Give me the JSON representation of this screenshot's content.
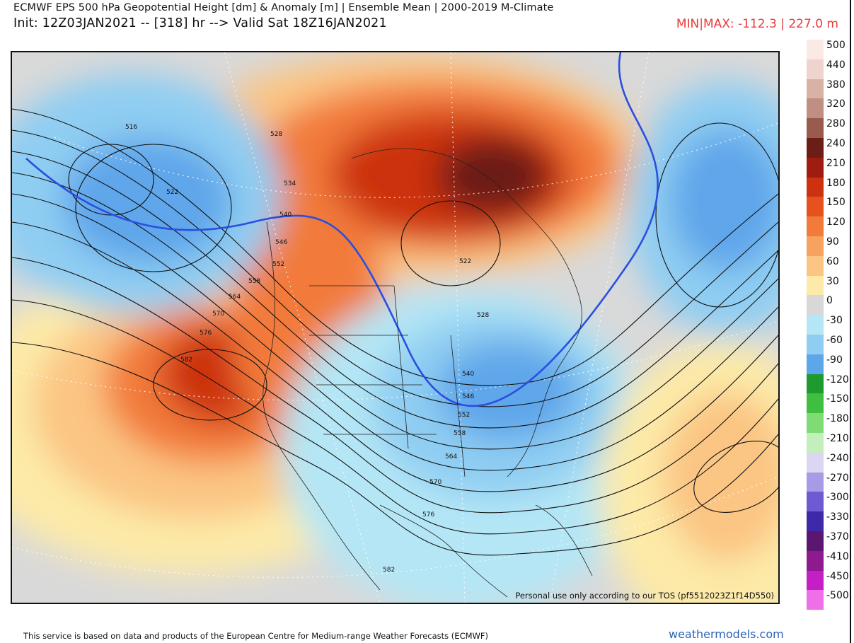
{
  "header": {
    "title": "ECMWF EPS 500 hPa Geopotential Height [dm] & Anomaly [m] | Ensemble Mean | 2000-2019 M-Climate",
    "init": "Init: 12Z03JAN2021 -- [318] hr --> Valid Sat 18Z16JAN2021",
    "minmax": "MIN|MAX: -112.3 | 227.0 m"
  },
  "map": {
    "tos_notice": "Personal use only according to our TOS (pf5512023Z1f14D550)",
    "contour_labels": [
      "516",
      "522",
      "528",
      "534",
      "540",
      "546",
      "552",
      "558",
      "564",
      "570",
      "576",
      "582",
      "522",
      "528",
      "540",
      "546",
      "552",
      "558",
      "564",
      "570",
      "576",
      "582"
    ]
  },
  "legend": {
    "items": [
      {
        "label": "500",
        "color": "#fbe9e6"
      },
      {
        "label": "440",
        "color": "#eed4cc"
      },
      {
        "label": "380",
        "color": "#d9b2a6"
      },
      {
        "label": "320",
        "color": "#c08e82"
      },
      {
        "label": "280",
        "color": "#9a5b4f"
      },
      {
        "label": "240",
        "color": "#6b1e15"
      },
      {
        "label": "210",
        "color": "#9e1d10"
      },
      {
        "label": "180",
        "color": "#cc3110"
      },
      {
        "label": "150",
        "color": "#e6521e"
      },
      {
        "label": "120",
        "color": "#f27a3a"
      },
      {
        "label": "90",
        "color": "#f7a25e"
      },
      {
        "label": "60",
        "color": "#fbc583"
      },
      {
        "label": "30",
        "color": "#fdeaa8"
      },
      {
        "label": "0",
        "color": "#d8d8d8"
      },
      {
        "label": "-30",
        "color": "#b4e6f5"
      },
      {
        "label": "-60",
        "color": "#8fcdf2"
      },
      {
        "label": "-90",
        "color": "#5ea6ea"
      },
      {
        "label": "-120",
        "color": "#1f9a2f"
      },
      {
        "label": "-150",
        "color": "#3fbf40"
      },
      {
        "label": "-180",
        "color": "#7fdc74"
      },
      {
        "label": "-210",
        "color": "#c4efbd"
      },
      {
        "label": "-240",
        "color": "#dcd6f2"
      },
      {
        "label": "-270",
        "color": "#a99ae6"
      },
      {
        "label": "-300",
        "color": "#6e5bd4"
      },
      {
        "label": "-330",
        "color": "#3c2aa8"
      },
      {
        "label": "-370",
        "color": "#5a1670"
      },
      {
        "label": "-410",
        "color": "#8e1a8e"
      },
      {
        "label": "-450",
        "color": "#c41fc4"
      },
      {
        "label": "-500",
        "color": "#ef6fe8"
      }
    ]
  },
  "footer": {
    "credit": "This service is based on data and products of the European Centre for Medium-range Weather Forecasts (ECMWF)",
    "site": "weathermodels.com"
  },
  "colors": {
    "accent_red": "#e83a3a",
    "link_blue": "#2b63b8",
    "contour_blue": "#2a4fe0"
  }
}
